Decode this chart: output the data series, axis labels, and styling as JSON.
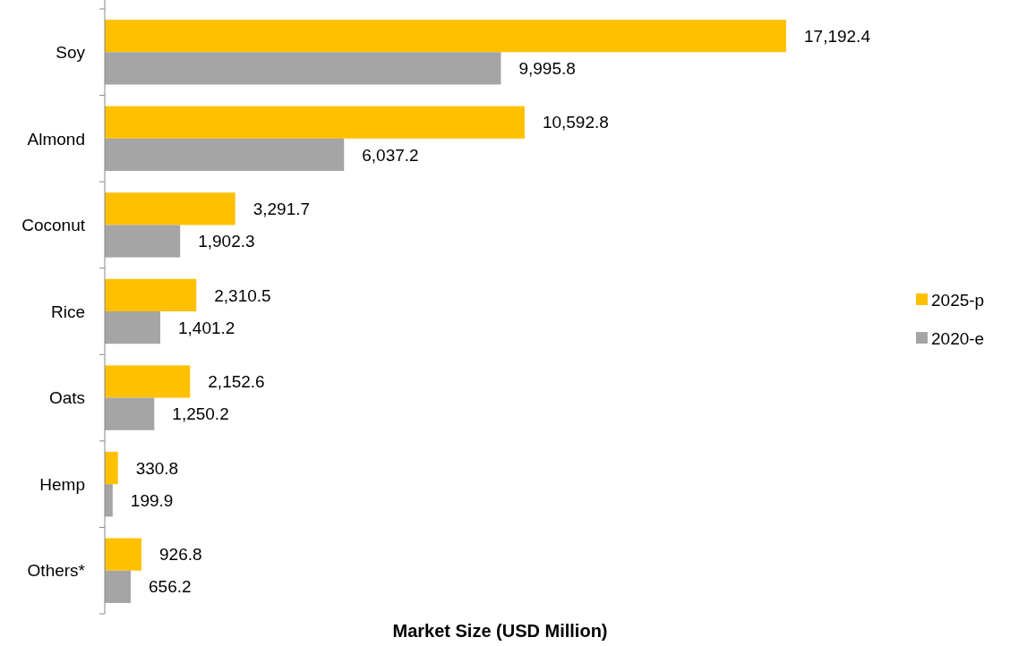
{
  "chart_data": {
    "type": "bar",
    "orientation": "horizontal",
    "xlabel": "Market Size (USD Million)",
    "categories": [
      "Soy",
      "Almond",
      "Coconut",
      "Rice",
      "Oats",
      "Hemp",
      "Others*"
    ],
    "series": [
      {
        "name": "2025-p",
        "color": "#ffc000",
        "values": [
          17192.4,
          10592.8,
          3291.7,
          2310.5,
          2152.6,
          330.8,
          926.8
        ],
        "value_labels": [
          "17,192.4",
          "10,592.8",
          "3,291.7",
          "2,310.5",
          "2,152.6",
          "330.8",
          "926.8"
        ]
      },
      {
        "name": "2020-e",
        "color": "#a5a5a5",
        "values": [
          9995.8,
          6037.2,
          1902.3,
          1401.2,
          1250.2,
          199.9,
          656.2
        ],
        "value_labels": [
          "9,995.8",
          "6,037.2",
          "1,902.3",
          "1,401.2",
          "1,250.2",
          "199.9",
          "656.2"
        ]
      }
    ],
    "legend": "right"
  }
}
